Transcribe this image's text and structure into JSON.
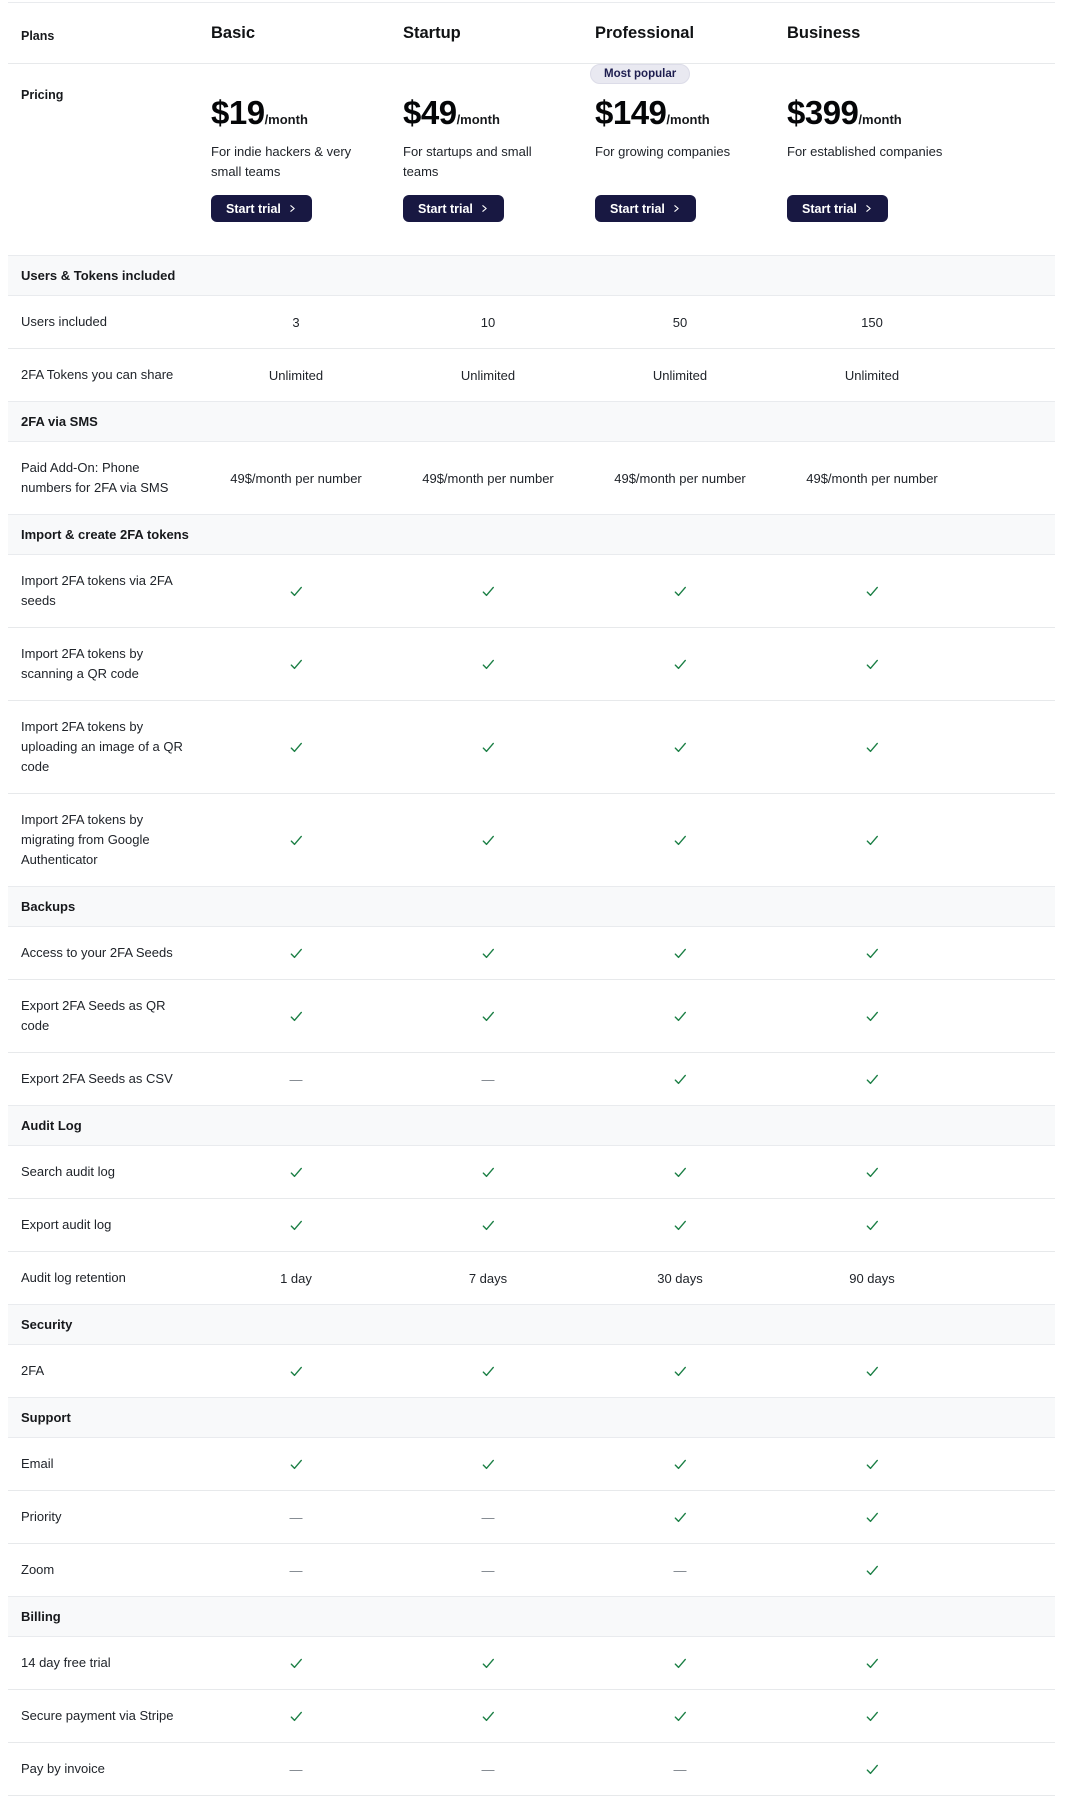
{
  "header": {
    "plans_label": "Plans",
    "pricing_label": "Pricing",
    "most_popular_badge": "Most popular"
  },
  "plans": [
    {
      "name": "Basic",
      "price": "$19",
      "period": "/month",
      "description": "For indie hackers & very small teams",
      "cta": "Start trial",
      "most_popular": false
    },
    {
      "name": "Startup",
      "price": "$49",
      "period": "/month",
      "description": "For startups and small teams",
      "cta": "Start trial",
      "most_popular": false
    },
    {
      "name": "Professional",
      "price": "$149",
      "period": "/month",
      "description": "For growing companies",
      "cta": "Start trial",
      "most_popular": true
    },
    {
      "name": "Business",
      "price": "$399",
      "period": "/month",
      "description": "For established companies",
      "cta": "Start trial",
      "most_popular": false
    }
  ],
  "sections": [
    {
      "title": "Users & Tokens included",
      "rows": [
        {
          "label": "Users included",
          "values": [
            "3",
            "10",
            "50",
            "150"
          ]
        },
        {
          "label": "2FA Tokens you can share",
          "values": [
            "Unlimited",
            "Unlimited",
            "Unlimited",
            "Unlimited"
          ]
        }
      ]
    },
    {
      "title": "2FA via SMS",
      "rows": [
        {
          "label": "Paid Add-On: Phone numbers for 2FA via SMS",
          "values": [
            "49$/month per number",
            "49$/month per number",
            "49$/month per number",
            "49$/month per number"
          ]
        }
      ]
    },
    {
      "title": "Import & create 2FA tokens",
      "rows": [
        {
          "label": "Import 2FA tokens via 2FA seeds",
          "values": [
            "check",
            "check",
            "check",
            "check"
          ]
        },
        {
          "label": "Import 2FA tokens by scanning a QR code",
          "values": [
            "check",
            "check",
            "check",
            "check"
          ]
        },
        {
          "label": "Import 2FA tokens by uploading an image of a QR code",
          "values": [
            "check",
            "check",
            "check",
            "check"
          ]
        },
        {
          "label": "Import 2FA tokens by migrating from Google Authenticator",
          "values": [
            "check",
            "check",
            "check",
            "check"
          ]
        }
      ]
    },
    {
      "title": "Backups",
      "rows": [
        {
          "label": "Access to your 2FA Seeds",
          "values": [
            "check",
            "check",
            "check",
            "check"
          ]
        },
        {
          "label": "Export 2FA Seeds as QR code",
          "values": [
            "check",
            "check",
            "check",
            "check"
          ]
        },
        {
          "label": "Export 2FA Seeds as CSV",
          "values": [
            "dash",
            "dash",
            "check",
            "check"
          ]
        }
      ]
    },
    {
      "title": "Audit Log",
      "rows": [
        {
          "label": "Search audit log",
          "values": [
            "check",
            "check",
            "check",
            "check"
          ]
        },
        {
          "label": "Export audit log",
          "values": [
            "check",
            "check",
            "check",
            "check"
          ]
        },
        {
          "label": "Audit log retention",
          "values": [
            "1 day",
            "7 days",
            "30 days",
            "90 days"
          ]
        }
      ]
    },
    {
      "title": "Security",
      "rows": [
        {
          "label": "2FA",
          "values": [
            "check",
            "check",
            "check",
            "check"
          ]
        }
      ]
    },
    {
      "title": "Support",
      "rows": [
        {
          "label": "Email",
          "values": [
            "check",
            "check",
            "check",
            "check"
          ]
        },
        {
          "label": "Priority",
          "values": [
            "dash",
            "dash",
            "check",
            "check"
          ]
        },
        {
          "label": "Zoom",
          "values": [
            "dash",
            "dash",
            "dash",
            "check"
          ]
        }
      ]
    },
    {
      "title": "Billing",
      "rows": [
        {
          "label": "14 day free trial",
          "values": [
            "check",
            "check",
            "check",
            "check"
          ]
        },
        {
          "label": "Secure payment via Stripe",
          "values": [
            "check",
            "check",
            "check",
            "check"
          ]
        },
        {
          "label": "Pay by invoice",
          "values": [
            "dash",
            "dash",
            "dash",
            "check"
          ]
        }
      ]
    }
  ],
  "icons": {
    "check": "check-icon",
    "dash": "dash-icon",
    "cta_chevron": "chevron-right-icon"
  },
  "colors": {
    "cta_background": "#181842",
    "check_green": "#1b7f45",
    "dash_gray": "#767d85",
    "badge_background": "#e9e9f1",
    "badge_text": "#1d1d4f",
    "band_background": "#f8f9fa",
    "divider": "#e7e9eb"
  }
}
